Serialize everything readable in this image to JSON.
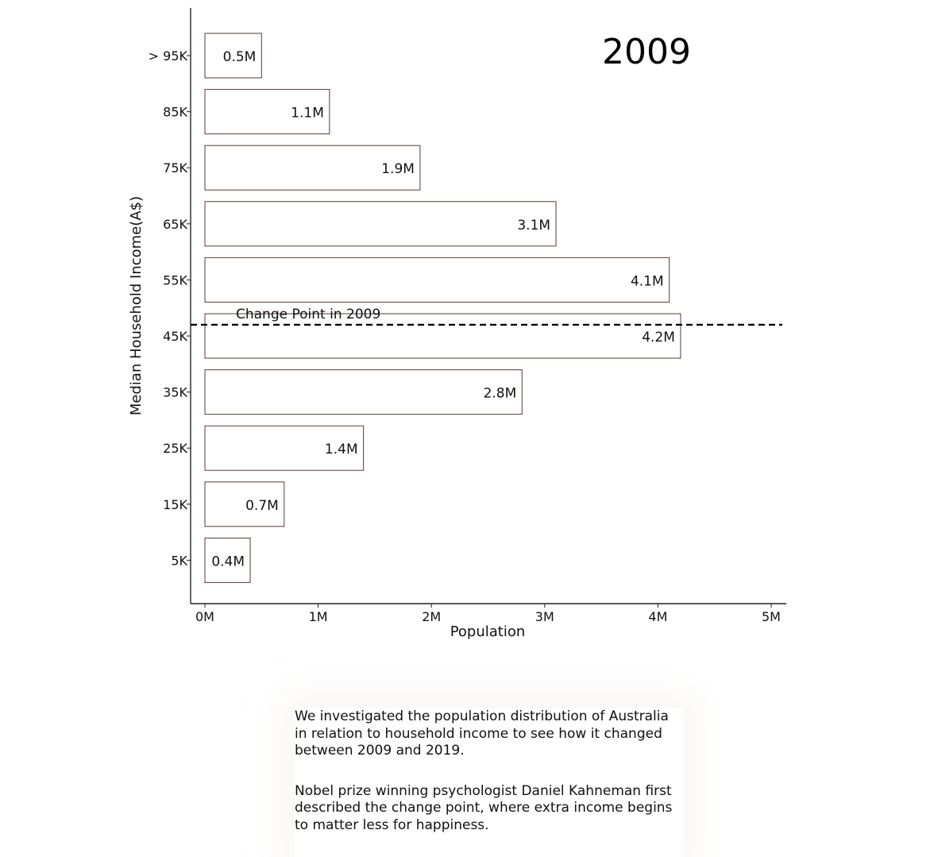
{
  "chart_data": {
    "type": "bar",
    "orientation": "horizontal",
    "year_label": "2009",
    "xlabel": "Population",
    "ylabel": "Median Household Income(A$)",
    "xlim": [
      0,
      5
    ],
    "x_ticks": [
      "0M",
      "1M",
      "2M",
      "3M",
      "4M",
      "5M"
    ],
    "categories": [
      "> 95K",
      "85K",
      "75K",
      "65K",
      "55K",
      "45K",
      "35K",
      "25K",
      "15K",
      "5K"
    ],
    "values": [
      0.5,
      1.1,
      1.9,
      3.1,
      4.1,
      4.2,
      2.8,
      1.4,
      0.7,
      0.4
    ],
    "value_labels": [
      "0.5M",
      "1.1M",
      "1.9M",
      "3.1M",
      "4.1M",
      "4.2M",
      "2.8M",
      "1.4M",
      "0.7M",
      "0.4M"
    ],
    "value_unit": "millions",
    "bar_fill": "#ffffff",
    "bar_stroke": "#5a3a32",
    "change_point": {
      "label": "Change Point in 2009",
      "value": 47
    },
    "grid": false
  },
  "caption": {
    "paragraphs": [
      "We investigated the population distribution of Australia in relation to household income to see how it changed between 2009 and 2019.",
      "Nobel prize winning psychologist Daniel Kahneman first described the change point, where extra income begins to matter less for happiness."
    ]
  }
}
